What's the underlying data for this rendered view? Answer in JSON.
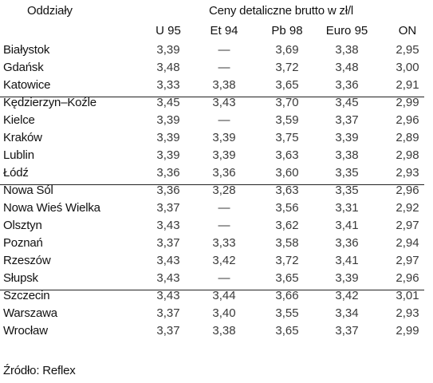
{
  "header": {
    "branch_label": "Oddziały",
    "group_label": "Ceny detaliczne brutto w zł/l",
    "columns": [
      "U 95",
      "Et 94",
      "Pb 98",
      "Euro 95",
      "ON"
    ]
  },
  "rows": [
    {
      "name": "Białystok",
      "values": [
        "3,39",
        "—",
        "3,69",
        "3,38",
        "2,95"
      ]
    },
    {
      "name": "Gdańsk",
      "values": [
        "3,48",
        "—",
        "3,72",
        "3,48",
        "3,00"
      ]
    },
    {
      "name": "Katowice",
      "values": [
        "3,33",
        "3,38",
        "3,65",
        "3,36",
        "2,91"
      ]
    },
    {
      "name": "Kędzierzyn–Koźle",
      "values": [
        "3,45",
        "3,43",
        "3,70",
        "3,45",
        "2,99"
      ]
    },
    {
      "name": "Kielce",
      "values": [
        "3,39",
        "—",
        "3,59",
        "3,37",
        "2,96"
      ]
    },
    {
      "name": "Kraków",
      "values": [
        "3,39",
        "3,39",
        "3,75",
        "3,39",
        "2,89"
      ]
    },
    {
      "name": "Lublin",
      "values": [
        "3,39",
        "3,39",
        "3,63",
        "3,38",
        "2,98"
      ]
    },
    {
      "name": "Łódź",
      "values": [
        "3,36",
        "3,36",
        "3,60",
        "3,35",
        "2,93"
      ]
    },
    {
      "name": "Nowa Sól",
      "values": [
        "3,36",
        "3,28",
        "3,63",
        "3,35",
        "2,96"
      ]
    },
    {
      "name": "Nowa Wieś Wielka",
      "values": [
        "3,37",
        "—",
        "3,56",
        "3,31",
        "2,92"
      ]
    },
    {
      "name": "Olsztyn",
      "values": [
        "3,43",
        "—",
        "3,62",
        "3,41",
        "2,97"
      ]
    },
    {
      "name": "Poznań",
      "values": [
        "3,37",
        "3,33",
        "3,58",
        "3,36",
        "2,94"
      ]
    },
    {
      "name": "Rzeszów",
      "values": [
        "3,43",
        "3,42",
        "3,72",
        "3,41",
        "2,97"
      ]
    },
    {
      "name": "Słupsk",
      "values": [
        "3,43",
        "—",
        "3,65",
        "3,39",
        "2,96"
      ]
    },
    {
      "name": "Szczecin",
      "values": [
        "3,43",
        "3,44",
        "3,66",
        "3,42",
        "3,01"
      ]
    },
    {
      "name": "Warszawa",
      "values": [
        "3,37",
        "3,40",
        "3,55",
        "3,34",
        "2,93"
      ]
    },
    {
      "name": "Wrocław",
      "values": [
        "3,37",
        "3,38",
        "3,65",
        "3,37",
        "2,99"
      ]
    }
  ],
  "source": "Źródło: Reflex"
}
